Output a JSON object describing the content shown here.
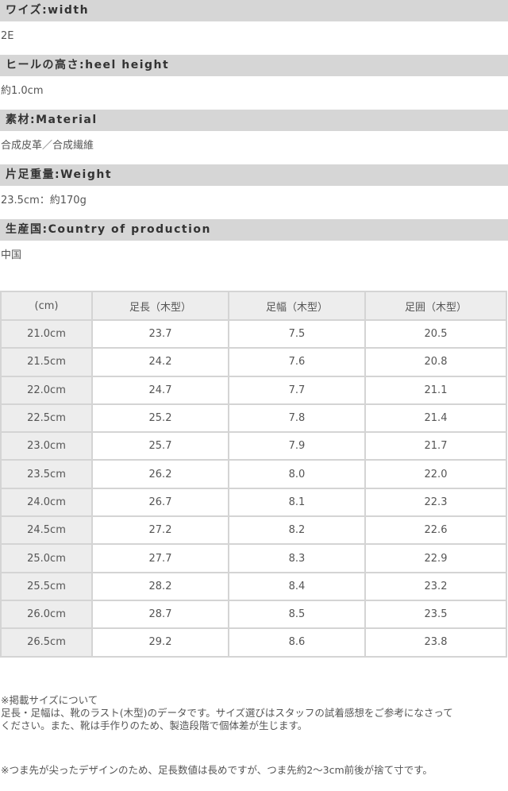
{
  "sections": [
    {
      "label": "ワイズ:width",
      "value": "2E"
    },
    {
      "label": "ヒールの高さ:heel height",
      "value": "約1.0cm"
    },
    {
      "label": "素材:Material",
      "value": "合成皮革／合成繊維"
    },
    {
      "label": "片足重量:Weight",
      "value": "23.5cm：約170g"
    },
    {
      "label": "生産国:Country of production",
      "value": "中国"
    }
  ],
  "size_table": {
    "headers": [
      "(cm)",
      "足長（木型）",
      "足幅（木型）",
      "足囲（木型）"
    ],
    "rows": [
      [
        "21.0cm",
        "23.7",
        "7.5",
        "20.5"
      ],
      [
        "21.5cm",
        "24.2",
        "7.6",
        "20.8"
      ],
      [
        "22.0cm",
        "24.7",
        "7.7",
        "21.1"
      ],
      [
        "22.5cm",
        "25.2",
        "7.8",
        "21.4"
      ],
      [
        "23.0cm",
        "25.7",
        "7.9",
        "21.7"
      ],
      [
        "23.5cm",
        "26.2",
        "8.0",
        "22.0"
      ],
      [
        "24.0cm",
        "26.7",
        "8.1",
        "22.3"
      ],
      [
        "24.5cm",
        "27.2",
        "8.2",
        "22.6"
      ],
      [
        "25.0cm",
        "27.7",
        "8.3",
        "22.9"
      ],
      [
        "25.5cm",
        "28.2",
        "8.4",
        "23.2"
      ],
      [
        "26.0cm",
        "28.7",
        "8.5",
        "23.5"
      ],
      [
        "26.5cm",
        "29.2",
        "8.6",
        "23.8"
      ]
    ]
  },
  "notes": {
    "title": "※掲載サイズについて",
    "line1": "足長・足幅は、靴のラスト(木型)のデータです。サイズ選びはスタッフの試着感想をご参考になさって",
    "line2": "ください。また、靴は手作りのため、製造段階で個体差が生じます。",
    "toe_note": "※つま先が尖ったデザインのため、足長数値は長めですが、つま先約2〜3cm前後が捨て寸です。"
  }
}
